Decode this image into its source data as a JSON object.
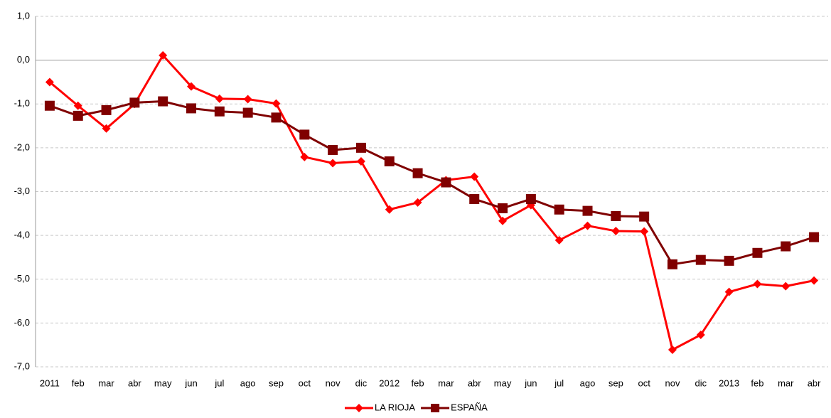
{
  "chart_data": {
    "type": "line",
    "categories": [
      "2011",
      "feb",
      "mar",
      "abr",
      "may",
      "jun",
      "jul",
      "ago",
      "sep",
      "oct",
      "nov",
      "dic",
      "2012",
      "feb",
      "mar",
      "abr",
      "may",
      "jun",
      "jul",
      "ago",
      "sep",
      "oct",
      "nov",
      "dic",
      "2013",
      "feb",
      "mar",
      "abr"
    ],
    "series": [
      {
        "name": "LA RIOJA",
        "color": "#ff0000",
        "marker": "diamond",
        "values": [
          -0.5,
          -1.04,
          -1.56,
          -1.0,
          0.11,
          -0.6,
          -0.88,
          -0.89,
          -0.99,
          -2.21,
          -2.35,
          -2.31,
          -3.41,
          -3.25,
          -2.74,
          -2.66,
          -3.67,
          -3.31,
          -4.11,
          -3.78,
          -3.9,
          -3.91,
          -6.61,
          -6.27,
          -5.29,
          -5.11,
          -5.16,
          -5.03
        ]
      },
      {
        "name": "ESPAÑA",
        "color": "#800000",
        "marker": "square",
        "values": [
          -1.04,
          -1.27,
          -1.14,
          -0.97,
          -0.94,
          -1.1,
          -1.17,
          -1.2,
          -1.31,
          -1.7,
          -2.05,
          -2.0,
          -2.31,
          -2.58,
          -2.79,
          -3.17,
          -3.38,
          -3.17,
          -3.41,
          -3.44,
          -3.56,
          -3.57,
          -4.66,
          -4.56,
          -4.58,
          -4.4,
          -4.25,
          -4.04
        ]
      }
    ],
    "ylim": [
      -7,
      1
    ],
    "yticks": [
      {
        "value": 1,
        "label": "1,0"
      },
      {
        "value": 0,
        "label": "0,0"
      },
      {
        "value": -1,
        "label": "-1,0"
      },
      {
        "value": -2,
        "label": "-2,0"
      },
      {
        "value": -3,
        "label": "-3,0"
      },
      {
        "value": -4,
        "label": "-4,0"
      },
      {
        "value": -5,
        "label": "-5,0"
      },
      {
        "value": -6,
        "label": "-6,0"
      },
      {
        "value": -7,
        "label": "-7,0"
      }
    ],
    "grid": true,
    "legend": "bottom"
  }
}
